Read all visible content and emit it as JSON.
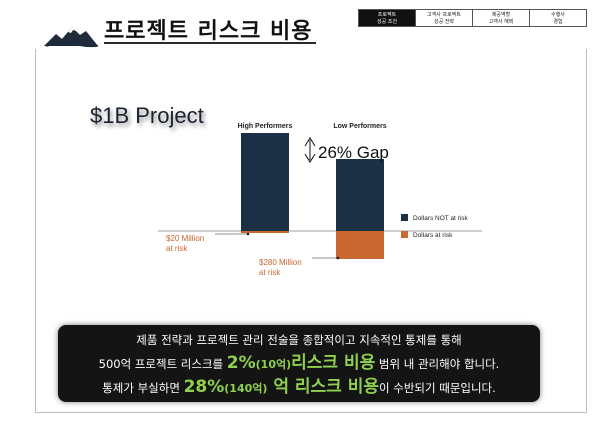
{
  "header": {
    "title": "프로젝트 리스크 비용",
    "nav_tabs": [
      {
        "line1": "프로젝트",
        "line2": "성공 조건",
        "active": true
      },
      {
        "line1": "고객사 프로젝트",
        "line2": "성공 전략",
        "active": false
      },
      {
        "line1": "제공역할",
        "line2": "고객사 혜택",
        "active": false
      },
      {
        "line1": "수행사",
        "line2": "경험",
        "active": false
      }
    ]
  },
  "main": {
    "project_label": "$1B Project"
  },
  "chart_data": {
    "type": "bar",
    "categories": [
      "High Performers",
      "Low Performers"
    ],
    "series": [
      {
        "name": "Dollars NOT at risk",
        "values": [
          980,
          720
        ],
        "color": "#1b2f45"
      },
      {
        "name": "Dollars at risk",
        "values": [
          20,
          280
        ],
        "color": "#c8672f"
      }
    ],
    "annotations": {
      "gap": "26% Gap",
      "high_risk": [
        "$20 Million",
        "at risk"
      ],
      "low_risk": [
        "$280 Million",
        "at risk"
      ]
    },
    "legend": "right"
  },
  "callout": {
    "line1": "제품 전략과 프로젝트 관리 전술을 종합적이고 지속적인 통제를 통해",
    "line2_pre": "500억 프로젝트 리스크를 ",
    "line2_pct": "2%",
    "line2_amt": "(10억)",
    "line2_hl": "리스크 비용",
    "line2_post": " 범위 내 관리해야 합니다.",
    "line3_pre": "통제가 부실하면 ",
    "line3_pct": "28%",
    "line3_amt": "(140억)",
    "line3_hl": " 억 리스크 비용",
    "line3_post": "이 수반되기 때문입니다."
  }
}
